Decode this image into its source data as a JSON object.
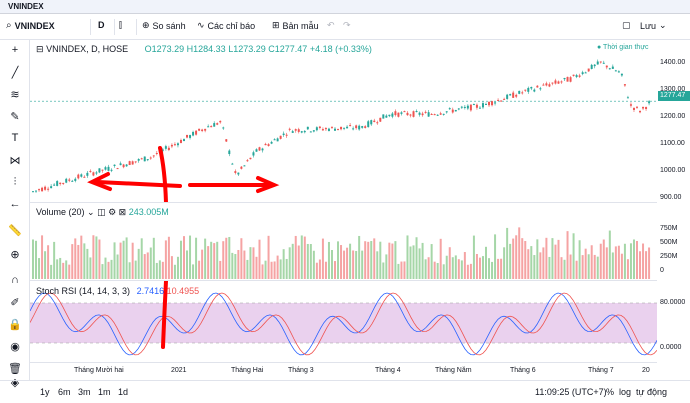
{
  "tab": {
    "title": "VNINDEX"
  },
  "toolbar": {
    "symbol": "VNINDEX",
    "interval": "D",
    "compare": "So sánh",
    "indicators": "Các chỉ báo",
    "templates": "Bản mẫu",
    "save": "Lưu"
  },
  "legend": {
    "main_symbol": "VNINDEX, D, HOSE",
    "open": "O1273.29",
    "high": "H1284.33",
    "low": "L1273.29",
    "close": "C1277.47",
    "change": "+4.18 (+0.33%)",
    "realtime": "● Thời gian thực"
  },
  "price_axis": {
    "labels": [
      "1400.00",
      "1300.00",
      "1200.00",
      "1100.00",
      "1000.00",
      "900.00"
    ],
    "last_price": "1277.47"
  },
  "volume": {
    "label": "Volume (20)",
    "value": "243.005M",
    "axis_labels": [
      "750M",
      "500M",
      "250M",
      "0"
    ]
  },
  "rsi": {
    "label": "Stoch RSI (14, 14, 3, 3)",
    "k": "2.7416",
    "d": "10.4955",
    "axis_labels": [
      "80.0000",
      "0.0000"
    ]
  },
  "time_axis": [
    "Tháng Mười hai",
    "2021",
    "Tháng Hai",
    "Tháng 3",
    "Tháng 4",
    "Tháng Năm",
    "Tháng 6",
    "Tháng 7",
    "20"
  ],
  "bottom": {
    "ranges": [
      "1y",
      "6m",
      "3m",
      "1m",
      "1d"
    ],
    "clock": "11:09:25 (UTC+7)",
    "percent": "%",
    "log": "log",
    "auto": "tự động"
  },
  "colors": {
    "up": "#26a69a",
    "down": "#ef5350",
    "rsi_band": "#e1bee7",
    "annotation": "#ff0000"
  }
}
